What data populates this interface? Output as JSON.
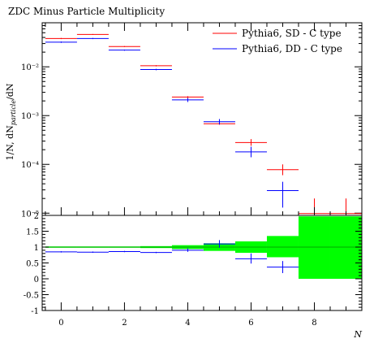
{
  "chart_data": {
    "type": "scatter",
    "title": "ZDC Minus Particle Multiplicity",
    "xlabel": "N",
    "ylabel": "1/N, dN",
    "ylabel_sub": "particle",
    "ylabel_tail": "/dN",
    "xlim": [
      -0.6,
      9.5
    ],
    "ylim": [
      9e-06,
      0.08
    ],
    "yscale": "log",
    "ratio_ylim": [
      -1,
      2
    ],
    "legend_position": "top-right",
    "x_ticks": [
      {
        "value": 0,
        "label": "0"
      },
      {
        "value": 2,
        "label": "2"
      },
      {
        "value": 4,
        "label": "4"
      },
      {
        "value": 6,
        "label": "6"
      },
      {
        "value": 8,
        "label": "8"
      }
    ],
    "y_ticks": [
      {
        "value": 0.01,
        "label": "10⁻²"
      },
      {
        "value": 0.001,
        "label": "10⁻³"
      },
      {
        "value": 0.0001,
        "label": "10⁻⁴"
      },
      {
        "value": 1e-05,
        "label": "10⁻⁵"
      }
    ],
    "ratio_ticks": [
      {
        "value": 2,
        "label": "2"
      },
      {
        "value": 1.5,
        "label": "1.5"
      },
      {
        "value": 1,
        "label": "1"
      },
      {
        "value": 0.5,
        "label": "0.5"
      },
      {
        "value": 0,
        "label": "0"
      },
      {
        "value": -0.5,
        "label": "-0.5"
      },
      {
        "value": -1,
        "label": "-1"
      }
    ],
    "bins": [
      [
        -0.5,
        0.5
      ],
      [
        0.5,
        1.5
      ],
      [
        1.5,
        2.5
      ],
      [
        2.5,
        3.5
      ],
      [
        3.5,
        4.5
      ],
      [
        4.5,
        5.5
      ],
      [
        5.5,
        6.5
      ],
      [
        6.5,
        7.5
      ],
      [
        7.5,
        8.5
      ],
      [
        8.5,
        9.5
      ]
    ],
    "series": [
      {
        "name": "Pythia6, SD - C type",
        "color": "#ff0000",
        "values": [
          0.038,
          0.046,
          0.026,
          0.0105,
          0.0024,
          0.00068,
          0.00028,
          7.8e-05,
          9.8e-06,
          9.8e-06
        ],
        "err_low": [
          0.037,
          0.045,
          0.0254,
          0.0102,
          0.0023,
          0.00065,
          0.00024,
          6e-05,
          null,
          null
        ],
        "err_high": [
          0.039,
          0.047,
          0.0266,
          0.0108,
          0.0025,
          0.00072,
          0.00033,
          0.0001,
          2e-05,
          2e-05
        ]
      },
      {
        "name": "Pythia6, DD - C type",
        "color": "#0000ff",
        "values": [
          0.032,
          0.038,
          0.022,
          0.0088,
          0.0021,
          0.00075,
          0.00018,
          2.9e-05,
          null,
          null
        ],
        "err_low": [
          0.031,
          0.037,
          0.0214,
          0.0085,
          0.0019,
          0.00066,
          0.00014,
          1.3e-05,
          null,
          null
        ],
        "err_high": [
          0.033,
          0.039,
          0.0226,
          0.0091,
          0.0023,
          0.00085,
          0.00023,
          4.4e-05,
          null,
          null
        ]
      }
    ],
    "ratio": {
      "reference_color": "#00ff00",
      "band_low": [
        0.98,
        0.98,
        0.98,
        0.97,
        0.94,
        0.88,
        0.82,
        0.68,
        0.0,
        0.0
      ],
      "band_high": [
        1.02,
        1.02,
        1.02,
        1.03,
        1.06,
        1.12,
        1.18,
        1.35,
        1.97,
        1.97
      ],
      "dd_values": [
        0.85,
        0.84,
        0.86,
        0.83,
        0.9,
        1.1,
        0.63,
        0.37,
        null,
        null
      ],
      "dd_err_low": [
        0.83,
        0.82,
        0.84,
        0.81,
        0.85,
        0.98,
        0.48,
        0.18,
        null,
        null
      ],
      "dd_err_high": [
        0.87,
        0.86,
        0.88,
        0.85,
        0.96,
        1.22,
        0.8,
        0.56,
        null,
        null
      ]
    }
  }
}
